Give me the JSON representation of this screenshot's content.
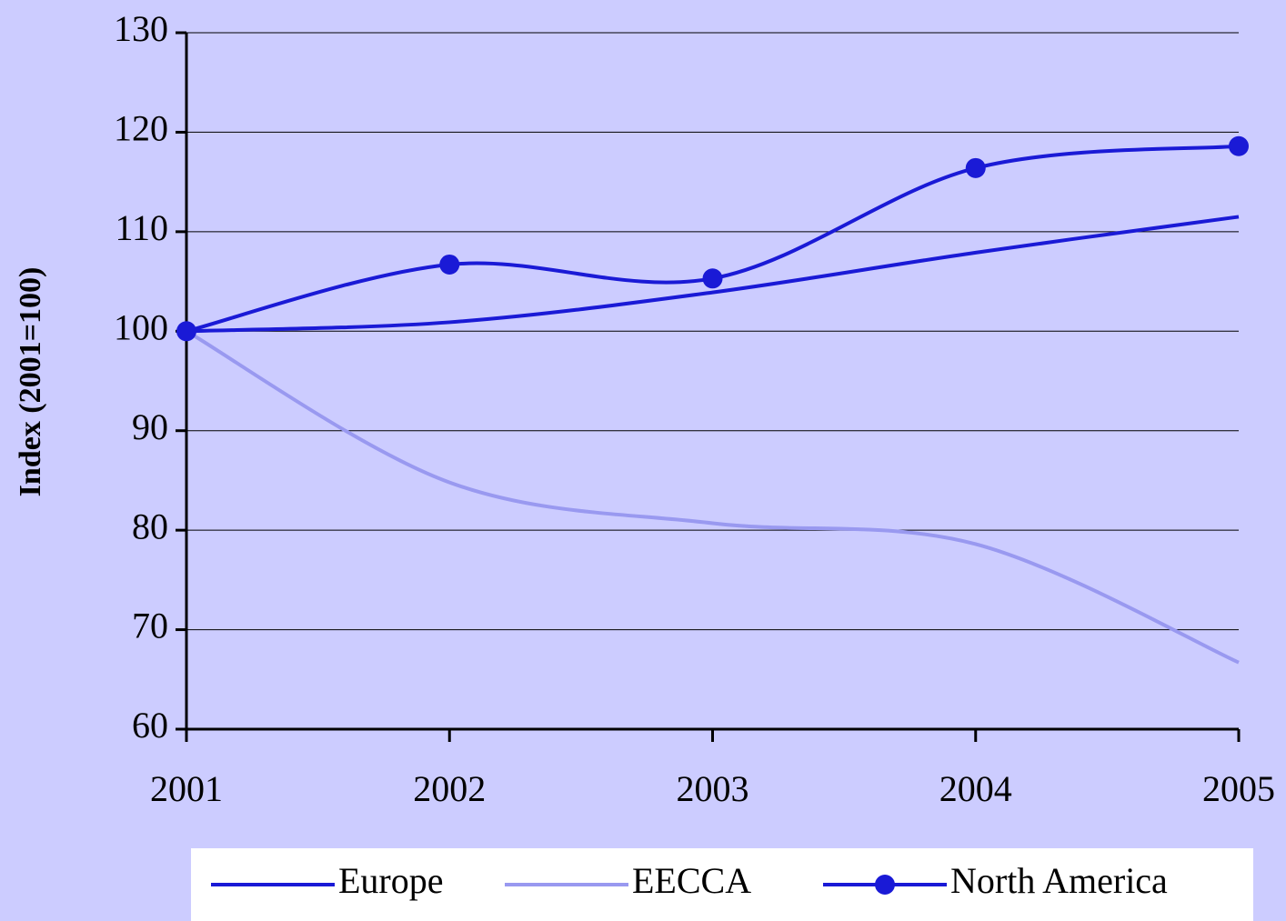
{
  "chart_data": {
    "type": "line",
    "y_label": "Index (2001=100)",
    "categories": [
      "2001",
      "2002",
      "2003",
      "2004",
      "2005"
    ],
    "series": [
      {
        "name": "Europe",
        "color": "#1a1ad6",
        "marker": false,
        "values": [
          100,
          100.9,
          103.9,
          107.9,
          111.5
        ]
      },
      {
        "name": "EECCA",
        "color": "#9999f0",
        "marker": false,
        "values": [
          100,
          84.8,
          80.7,
          78.6,
          66.7
        ]
      },
      {
        "name": "North America",
        "color": "#1a1ad6",
        "marker": true,
        "values": [
          100,
          106.7,
          105.3,
          116.4,
          118.6
        ]
      }
    ],
    "ylim": [
      60,
      130
    ],
    "yticks": [
      60,
      70,
      80,
      90,
      100,
      110,
      120,
      130
    ],
    "grid": true,
    "legend": "bottom"
  }
}
